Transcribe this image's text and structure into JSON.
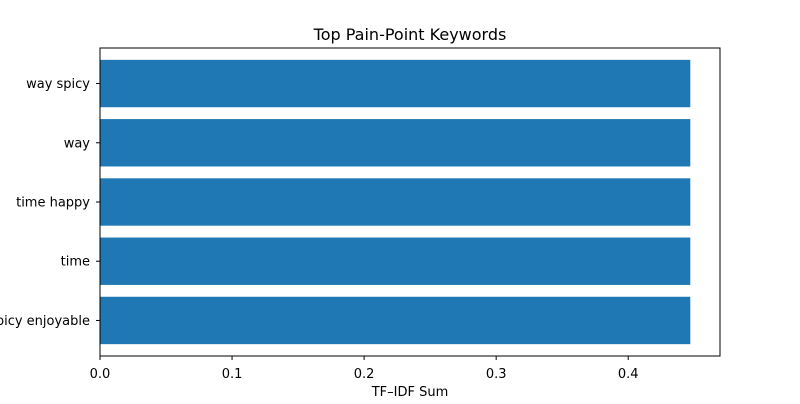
{
  "chart_data": {
    "type": "bar",
    "orientation": "horizontal",
    "title": "Top Pain-Point Keywords",
    "xlabel": "TF–IDF Sum",
    "ylabel": "",
    "categories": [
      "way spicy",
      "way",
      "time happy",
      "time",
      "spicy enjoyable"
    ],
    "values": [
      0.447,
      0.447,
      0.447,
      0.447,
      0.447
    ],
    "xlim": [
      0,
      0.4695
    ],
    "xticks": [
      0.0,
      0.1,
      0.2,
      0.3,
      0.4
    ],
    "xtick_labels": [
      "0.0",
      "0.1",
      "0.2",
      "0.3",
      "0.4"
    ],
    "grid": false,
    "legend": "none",
    "bar_color": "#1f77b4"
  }
}
